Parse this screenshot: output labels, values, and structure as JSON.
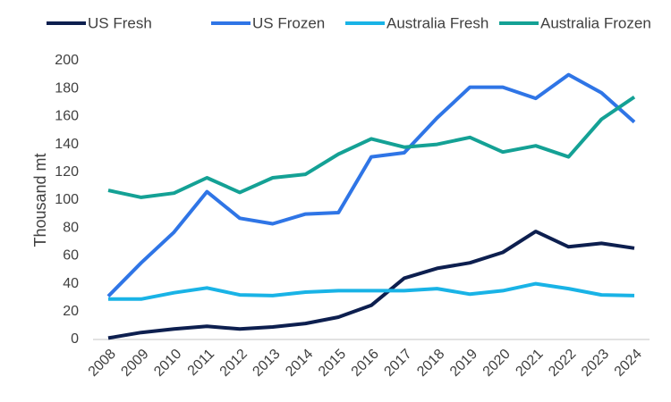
{
  "chart_data": {
    "type": "line",
    "title": "",
    "xlabel": "",
    "ylabel": "Thousand mt",
    "ylim": [
      0,
      200
    ],
    "yticks": [
      "0",
      "20",
      "40",
      "60",
      "80",
      "100",
      "120",
      "140",
      "160",
      "180",
      "200"
    ],
    "categories": [
      "2008",
      "2009",
      "2010",
      "2011",
      "2012",
      "2013",
      "2014",
      "2015",
      "2016",
      "2017",
      "2018",
      "2019",
      "2020",
      "2021",
      "2022",
      "2023",
      "2024"
    ],
    "grid": false,
    "legend_position": "top",
    "series": [
      {
        "name": "US Fresh",
        "color": "#0d1f4f",
        "values": [
          1,
          5,
          7.5,
          9.5,
          7.5,
          9,
          11.5,
          16,
          24.5,
          44,
          51,
          55,
          62.5,
          77.5,
          66.5,
          69,
          65.5
        ]
      },
      {
        "name": "US Frozen",
        "color": "#2f75e6",
        "values": [
          31,
          55,
          77,
          106,
          87,
          83,
          90,
          91,
          131,
          134,
          159,
          181,
          181,
          173,
          190,
          177,
          156
        ]
      },
      {
        "name": "Australia Fresh",
        "color": "#19b3e6",
        "values": [
          29,
          29,
          33.5,
          37,
          32,
          31.5,
          34,
          35,
          35,
          35,
          36.5,
          32.5,
          35,
          40,
          36.5,
          32,
          31.5
        ]
      },
      {
        "name": "Australia Frozen",
        "color": "#14a195",
        "values": [
          107,
          102,
          105,
          116,
          105.5,
          116,
          118.5,
          133,
          144,
          138,
          140,
          145,
          134.5,
          139,
          131,
          158,
          174
        ]
      }
    ]
  }
}
